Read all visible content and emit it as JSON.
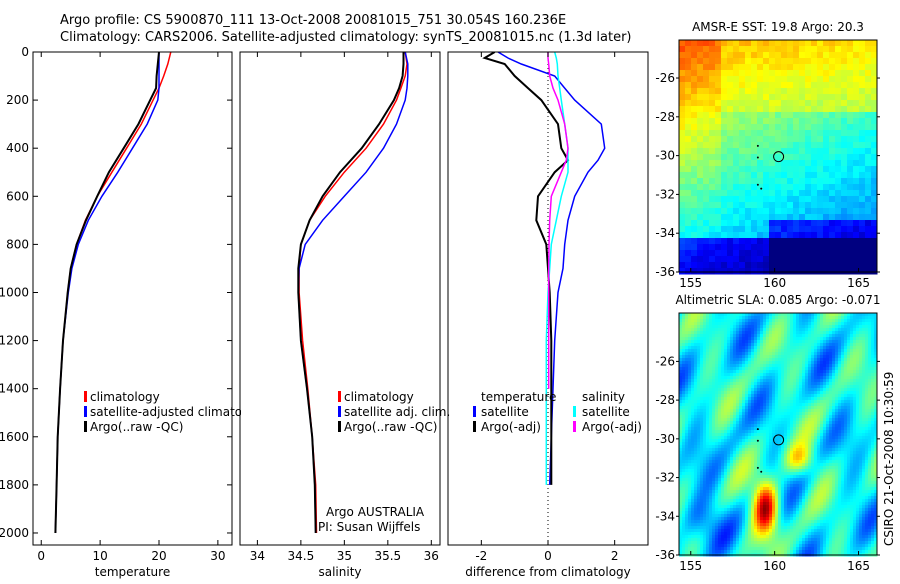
{
  "title_line1": "Argo profile: CS 5900870_111 13-Oct-2008 20081015_751 30.054S 160.236E",
  "title_line2": "Climatology: CARS2006. Satellite-adjusted climatology: synTS_20081015.nc (1.3d later)",
  "side_label": "CSIRO 21-Oct-2008 10:30:59",
  "credit": {
    "line1": "Argo AUSTRALIA",
    "line2": "PI: Susan Wijffels"
  },
  "colors": {
    "climatology": "#ff0000",
    "satellite": "#0000ff",
    "argo": "#000000",
    "sal_satellite": "#00ffff",
    "sal_argo": "#ff00ff"
  },
  "chart_data": [
    {
      "type": "line",
      "name": "temperature",
      "xlabel": "temperature",
      "ylabel": "",
      "xlim": [
        -1.4,
        32.4
      ],
      "ylim": [
        2050,
        0
      ],
      "xticks": [
        0,
        10,
        20,
        30
      ],
      "yticks": [
        0,
        200,
        400,
        600,
        800,
        1000,
        1200,
        1400,
        1600,
        1800,
        2000
      ],
      "legend": [
        "climatology",
        "satellite-adjusted climatology",
        "Argo(..raw -QC)"
      ],
      "depth": [
        0,
        50,
        100,
        150,
        200,
        300,
        400,
        500,
        600,
        700,
        800,
        900,
        1000,
        1200,
        1400,
        1600,
        1800,
        2000
      ],
      "series": [
        {
          "name": "climatology",
          "color": "#ff0000",
          "values": [
            22,
            21.5,
            20.8,
            20,
            19,
            17,
            14.5,
            12,
            9.5,
            7.5,
            6,
            5,
            4.5,
            3.7,
            3.2,
            2.8,
            2.6,
            2.4
          ]
        },
        {
          "name": "satellite-adjusted climatology",
          "color": "#0000ff",
          "values": [
            20,
            20,
            20,
            20,
            19.8,
            18,
            15.5,
            13,
            10.3,
            8,
            6.3,
            5.2,
            4.6,
            3.7,
            3.2,
            2.8,
            2.6,
            2.4
          ]
        },
        {
          "name": "Argo(..raw -QC)",
          "color": "#000000",
          "values": [
            20,
            19.8,
            19.6,
            19.5,
            18.5,
            16.5,
            14,
            11.5,
            9.5,
            7.6,
            6,
            5,
            4.5,
            3.7,
            3.2,
            2.8,
            2.6,
            2.4
          ]
        }
      ]
    },
    {
      "type": "line",
      "name": "salinity",
      "xlabel": "salinity",
      "ylabel": "",
      "xlim": [
        33.8,
        36.1
      ],
      "ylim": [
        2050,
        0
      ],
      "xticks": [
        34,
        34.5,
        35,
        35.5,
        36
      ],
      "yticks": [],
      "legend": [
        "climatology",
        "satellite adj. clim.",
        "Argo(..raw -QC)"
      ],
      "depth": [
        0,
        50,
        100,
        150,
        200,
        300,
        400,
        500,
        600,
        700,
        800,
        900,
        1000,
        1200,
        1400,
        1600,
        1800,
        2000
      ],
      "series": [
        {
          "name": "climatology",
          "color": "#ff0000",
          "values": [
            35.7,
            35.72,
            35.7,
            35.65,
            35.6,
            35.45,
            35.25,
            35.0,
            34.78,
            34.6,
            34.5,
            34.48,
            34.48,
            34.52,
            34.58,
            34.63,
            34.67,
            34.68
          ]
        },
        {
          "name": "satellite adj. clim.",
          "color": "#0000ff",
          "values": [
            35.7,
            35.73,
            35.73,
            35.72,
            35.7,
            35.6,
            35.45,
            35.25,
            35.0,
            34.75,
            34.55,
            34.48,
            34.47,
            34.5,
            34.57,
            34.63,
            34.66,
            34.67
          ]
        },
        {
          "name": "Argo(..raw -QC)",
          "color": "#000000",
          "values": [
            35.68,
            35.68,
            35.67,
            35.63,
            35.57,
            35.4,
            35.2,
            34.95,
            34.75,
            34.6,
            34.5,
            34.47,
            34.47,
            34.5,
            34.57,
            34.63,
            34.66,
            34.67
          ]
        }
      ]
    },
    {
      "type": "line",
      "name": "difference",
      "xlabel": "difference from climatology",
      "ylabel": "",
      "xlim": [
        -3,
        3
      ],
      "ylim": [
        2050,
        0
      ],
      "xticks": [
        -2,
        0,
        2
      ],
      "yticks": [],
      "legend_headers": [
        "temperature",
        "salinity"
      ],
      "legend": [
        "satellite",
        "Argo(-adj)",
        "satellite",
        "Argo(-adj)"
      ],
      "depth": [
        0,
        25,
        50,
        100,
        150,
        200,
        300,
        400,
        450,
        500,
        600,
        700,
        800,
        900,
        1000,
        1200,
        1400,
        1600,
        1800
      ],
      "series": [
        {
          "name": "temperature satellite",
          "color": "#0000ff",
          "values": [
            -1.5,
            -1.2,
            -0.8,
            0.2,
            0.5,
            0.8,
            1.6,
            1.7,
            1.5,
            1.2,
            0.8,
            0.6,
            0.5,
            0.45,
            0.3,
            0.2,
            0.15,
            0.1,
            0.05
          ]
        },
        {
          "name": "temperature Argo(-adj)",
          "color": "#000000",
          "values": [
            -1.6,
            -1.9,
            -1.3,
            -1.0,
            -0.6,
            -0.2,
            0.3,
            0.4,
            0.6,
            0.2,
            -0.3,
            -0.35,
            -0.05,
            0,
            0.05,
            0.1,
            0.1,
            0.1,
            0.1
          ]
        },
        {
          "name": "salinity satellite",
          "color": "#00ffff",
          "values": [
            0.2,
            0.25,
            0.28,
            0.3,
            0.35,
            0.4,
            0.5,
            0.6,
            0.6,
            0.6,
            0.4,
            0.25,
            0.1,
            0.05,
            0,
            -0.05,
            -0.05,
            -0.05,
            -0.05
          ]
        },
        {
          "name": "salinity Argo(-adj)",
          "color": "#ff00ff",
          "values": [
            0,
            0,
            0.02,
            0.05,
            0.15,
            0.3,
            0.5,
            0.6,
            0.55,
            0.4,
            0.1,
            0.05,
            0.03,
            0.02,
            0.02,
            0.02,
            0.02,
            null,
            null
          ]
        }
      ]
    },
    {
      "type": "heatmap",
      "name": "sst-map",
      "title": "AMSR-E SST: 19.8 Argo: 20.3",
      "xlim": [
        154.3,
        166.1
      ],
      "ylim": [
        -36,
        -24.04
      ],
      "xticks": [
        155,
        160,
        165
      ],
      "yticks": [
        -26,
        -28,
        -30,
        -32,
        -34,
        -36
      ],
      "marker": {
        "lon": 160.236,
        "lat": -30.054
      }
    },
    {
      "type": "heatmap",
      "name": "sla-map",
      "title": "Altimetric SLA: 0.085 Argo: -0.071",
      "xlim": [
        154.3,
        166.1
      ],
      "ylim": [
        -36,
        -23.5
      ],
      "xticks": [
        155,
        160,
        165
      ],
      "yticks": [
        -26,
        -28,
        -30,
        -32,
        -34,
        -36
      ],
      "marker": {
        "lon": 160.236,
        "lat": -30.054
      }
    }
  ]
}
